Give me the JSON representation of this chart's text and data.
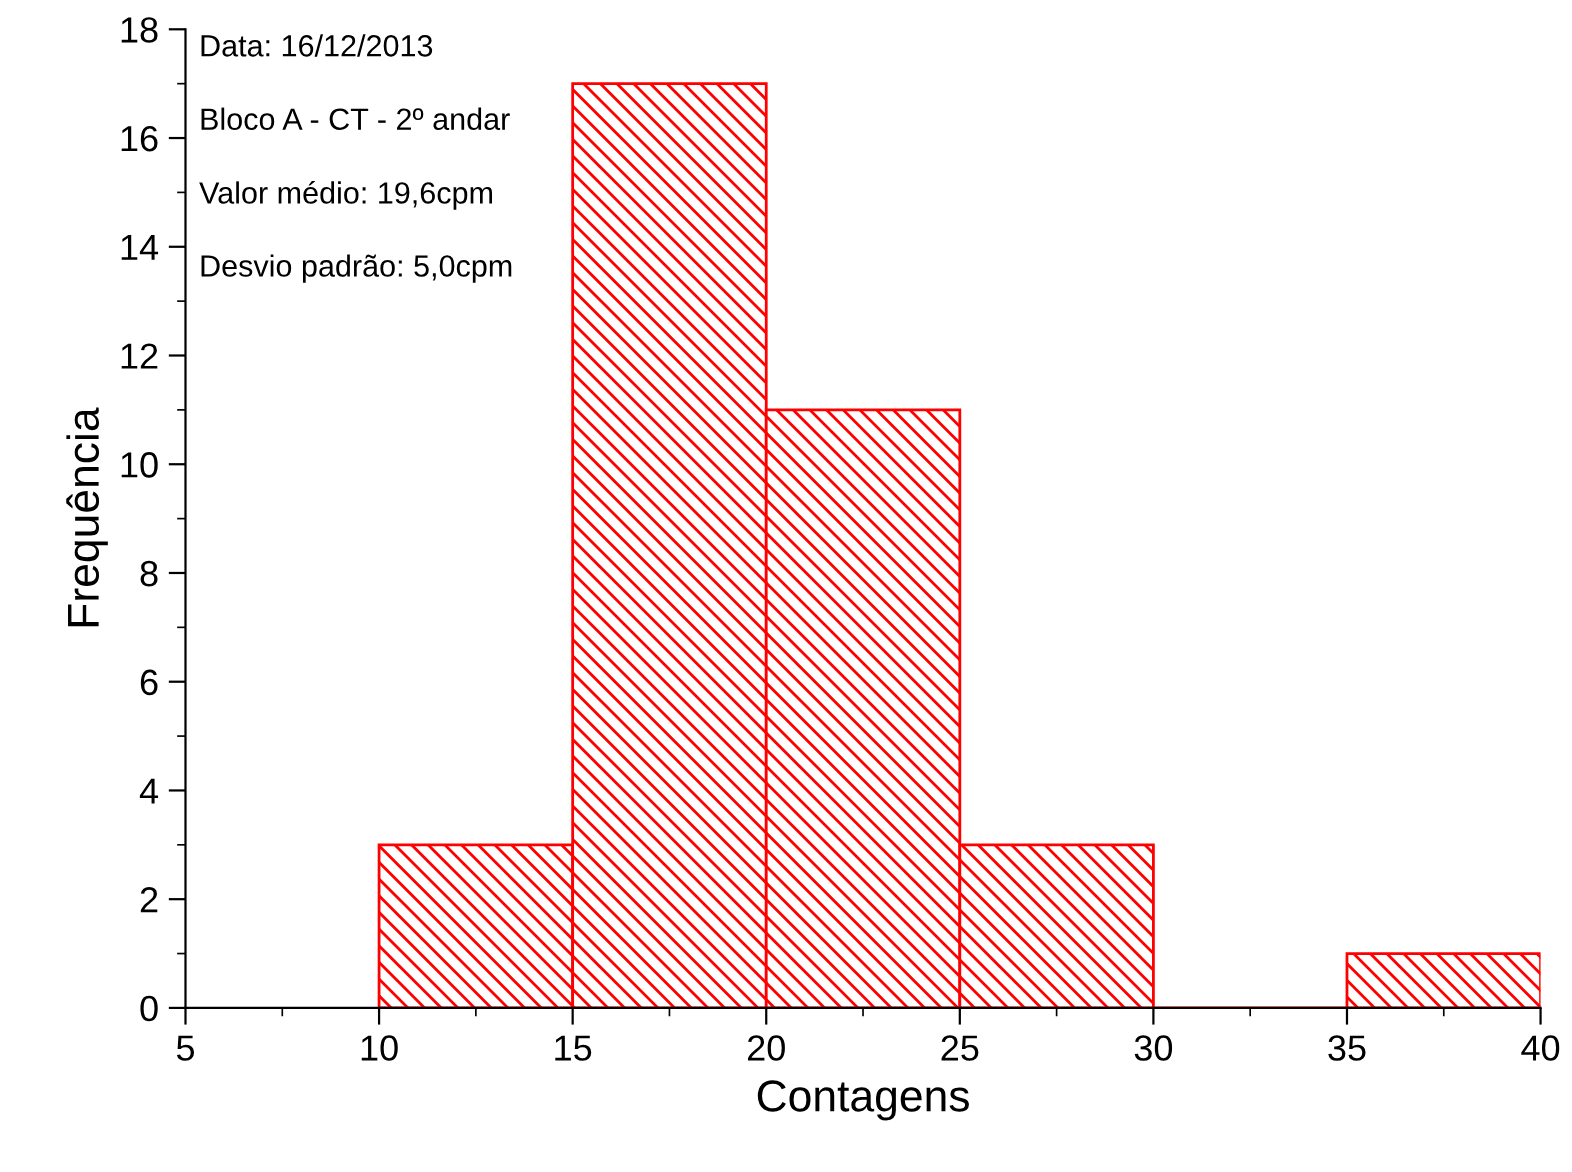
{
  "chart_data": {
    "type": "histogram",
    "xlabel": "Contagens",
    "ylabel": "Frequência",
    "bins": [
      10,
      15,
      20,
      25,
      30,
      35,
      40
    ],
    "values": [
      3,
      17,
      11,
      3,
      0,
      1
    ],
    "color": "#ff0000",
    "xlim": [
      5,
      40
    ],
    "xticks": [
      5,
      10,
      15,
      20,
      25,
      30,
      35,
      40
    ],
    "ylim": [
      0,
      18
    ],
    "yticks": [
      0,
      2,
      4,
      6,
      8,
      10,
      12,
      14,
      16,
      18
    ],
    "grid": false,
    "legend": false,
    "annotations": [
      "Data: 16/12/2013",
      "Bloco A - CT - 2º andar",
      "Valor médio: 19,6cpm",
      "Desvio padrão: 5,0cpm"
    ]
  }
}
